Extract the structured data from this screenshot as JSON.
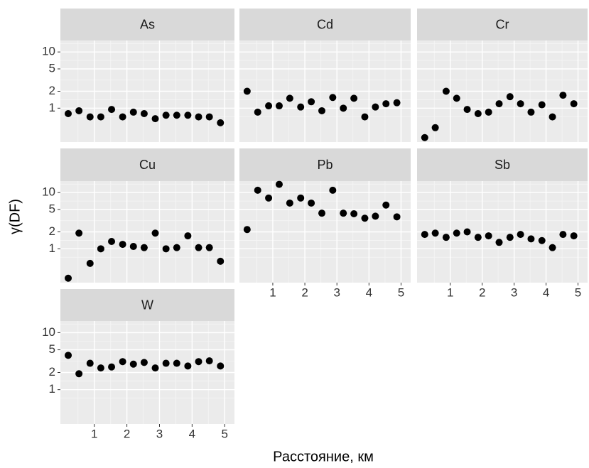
{
  "xlabel": "Расстояние, км",
  "ylabel": "γ(DF)",
  "chart_data": [
    {
      "type": "scatter",
      "title": "As",
      "x": [
        0.2,
        0.53,
        0.87,
        1.2,
        1.53,
        1.87,
        2.2,
        2.53,
        2.87,
        3.2,
        3.53,
        3.87,
        4.2,
        4.53,
        4.87
      ],
      "values": [
        0.8,
        0.9,
        0.7,
        0.7,
        0.95,
        0.7,
        0.85,
        0.8,
        0.65,
        0.75,
        0.75,
        0.75,
        0.7,
        0.7,
        0.55
      ],
      "color": "#000000",
      "xlim": [
        -0.04,
        5.3
      ],
      "ylim": [
        0.25,
        16
      ],
      "xticks": [
        1,
        2,
        3,
        4,
        5
      ],
      "yticks": [
        1,
        2,
        5,
        10
      ],
      "log_y": true,
      "grid": true
    },
    {
      "type": "scatter",
      "title": "Cd",
      "x": [
        0.2,
        0.53,
        0.87,
        1.2,
        1.53,
        1.87,
        2.2,
        2.53,
        2.87,
        3.2,
        3.53,
        3.87,
        4.2,
        4.53,
        4.87
      ],
      "values": [
        2.0,
        0.85,
        1.1,
        1.1,
        1.5,
        1.05,
        1.3,
        0.9,
        1.55,
        1.0,
        1.5,
        0.7,
        1.05,
        1.2,
        1.25
      ],
      "color": "#000000",
      "xlim": [
        -0.04,
        5.3
      ],
      "ylim": [
        0.25,
        16
      ],
      "xticks": [
        1,
        2,
        3,
        4,
        5
      ],
      "yticks": [
        1,
        2,
        5,
        10
      ],
      "log_y": true,
      "grid": true
    },
    {
      "type": "scatter",
      "title": "Cr",
      "x": [
        0.2,
        0.53,
        0.87,
        1.2,
        1.53,
        1.87,
        2.2,
        2.53,
        2.87,
        3.2,
        3.53,
        3.87,
        4.2,
        4.53,
        4.87
      ],
      "values": [
        0.3,
        0.45,
        2.0,
        1.5,
        0.95,
        0.8,
        0.85,
        1.2,
        1.6,
        1.2,
        0.85,
        1.15,
        0.7,
        1.7,
        1.2
      ],
      "color": "#000000",
      "xlim": [
        -0.04,
        5.3
      ],
      "ylim": [
        0.25,
        16
      ],
      "xticks": [
        1,
        2,
        3,
        4,
        5
      ],
      "yticks": [
        1,
        2,
        5,
        10
      ],
      "log_y": true,
      "grid": true
    },
    {
      "type": "scatter",
      "title": "Cu",
      "x": [
        0.2,
        0.53,
        0.87,
        1.2,
        1.53,
        1.87,
        2.2,
        2.53,
        2.87,
        3.2,
        3.53,
        3.87,
        4.2,
        4.53,
        4.87
      ],
      "values": [
        0.3,
        1.9,
        0.55,
        1.0,
        1.35,
        1.2,
        1.1,
        1.05,
        1.9,
        1.0,
        1.05,
        1.7,
        1.05,
        1.05,
        0.6
      ],
      "color": "#000000",
      "xlim": [
        -0.04,
        5.3
      ],
      "ylim": [
        0.25,
        16
      ],
      "xticks": [
        1,
        2,
        3,
        4,
        5
      ],
      "yticks": [
        1,
        2,
        5,
        10
      ],
      "log_y": true,
      "grid": true
    },
    {
      "type": "scatter",
      "title": "Pb",
      "x": [
        0.2,
        0.53,
        0.87,
        1.2,
        1.53,
        1.87,
        2.2,
        2.53,
        2.87,
        3.2,
        3.53,
        3.87,
        4.2,
        4.53,
        4.87
      ],
      "values": [
        2.2,
        11,
        8,
        14,
        6.5,
        8,
        6.5,
        4.3,
        11,
        4.3,
        4.2,
        3.5,
        3.8,
        6,
        3.7
      ],
      "color": "#000000",
      "xlim": [
        -0.04,
        5.3
      ],
      "ylim": [
        0.25,
        16
      ],
      "xticks": [
        1,
        2,
        3,
        4,
        5
      ],
      "yticks": [
        1,
        2,
        5,
        10
      ],
      "log_y": true,
      "grid": true
    },
    {
      "type": "scatter",
      "title": "Sb",
      "x": [
        0.2,
        0.53,
        0.87,
        1.2,
        1.53,
        1.87,
        2.2,
        2.53,
        2.87,
        3.2,
        3.53,
        3.87,
        4.2,
        4.53,
        4.87
      ],
      "values": [
        1.8,
        1.9,
        1.6,
        1.9,
        2.0,
        1.6,
        1.7,
        1.3,
        1.6,
        1.8,
        1.5,
        1.4,
        1.05,
        1.8,
        1.7
      ],
      "color": "#000000",
      "xlim": [
        -0.04,
        5.3
      ],
      "ylim": [
        0.25,
        16
      ],
      "xticks": [
        1,
        2,
        3,
        4,
        5
      ],
      "yticks": [
        1,
        2,
        5,
        10
      ],
      "log_y": true,
      "grid": true
    },
    {
      "type": "scatter",
      "title": "W",
      "x": [
        0.2,
        0.53,
        0.87,
        1.2,
        1.53,
        1.87,
        2.2,
        2.53,
        2.87,
        3.2,
        3.53,
        3.87,
        4.2,
        4.53,
        4.87
      ],
      "values": [
        4,
        1.9,
        2.9,
        2.4,
        2.5,
        3.1,
        2.8,
        3.0,
        2.4,
        2.9,
        2.9,
        2.6,
        3.1,
        3.2,
        2.6
      ],
      "color": "#000000",
      "xlim": [
        -0.04,
        5.3
      ],
      "ylim": [
        0.25,
        16
      ],
      "xticks": [
        1,
        2,
        3,
        4,
        5
      ],
      "yticks": [
        1,
        2,
        5,
        10
      ],
      "log_y": true,
      "grid": true
    }
  ]
}
